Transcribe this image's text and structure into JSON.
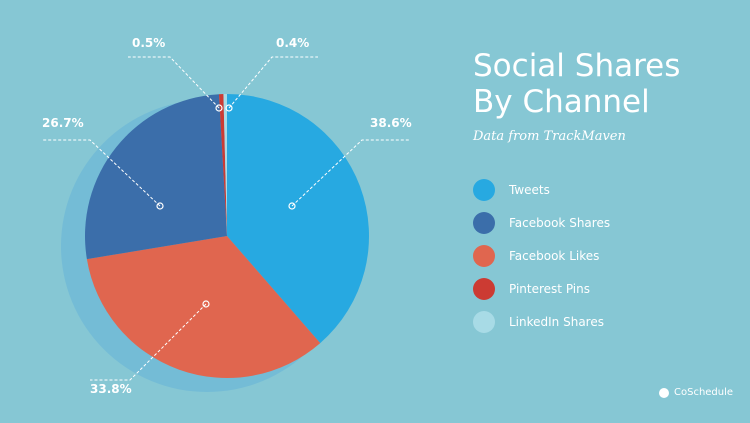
{
  "chart_data": {
    "type": "pie",
    "title": "Social Shares By Channel",
    "subtitle": "Data from TrackMaven",
    "slices": [
      {
        "name": "Tweets",
        "value": 38.6,
        "label": "38.6%",
        "color": "#27a9e1"
      },
      {
        "name": "Facebook Likes",
        "value": 33.8,
        "label": "33.8%",
        "color": "#e0664f"
      },
      {
        "name": "Facebook Shares",
        "value": 26.7,
        "label": "26.7%",
        "color": "#3b6eaa"
      },
      {
        "name": "Pinterest Pins",
        "value": 0.5,
        "label": "0.5%",
        "color": "#cc3b33"
      },
      {
        "name": "LinkedIn Shares",
        "value": 0.4,
        "label": "0.4%",
        "color": "#a8dbe6"
      }
    ],
    "legend": [
      "Tweets",
      "Facebook Shares",
      "Facebook Likes",
      "Pinterest Pins",
      "LinkedIn Shares"
    ],
    "legend_placement": "right"
  },
  "title_line1": "Social Shares",
  "title_line2": "By Channel",
  "brand": "CoSchedule",
  "colors": {
    "background": "#86c7d4",
    "shadow": "#74bcd6"
  }
}
